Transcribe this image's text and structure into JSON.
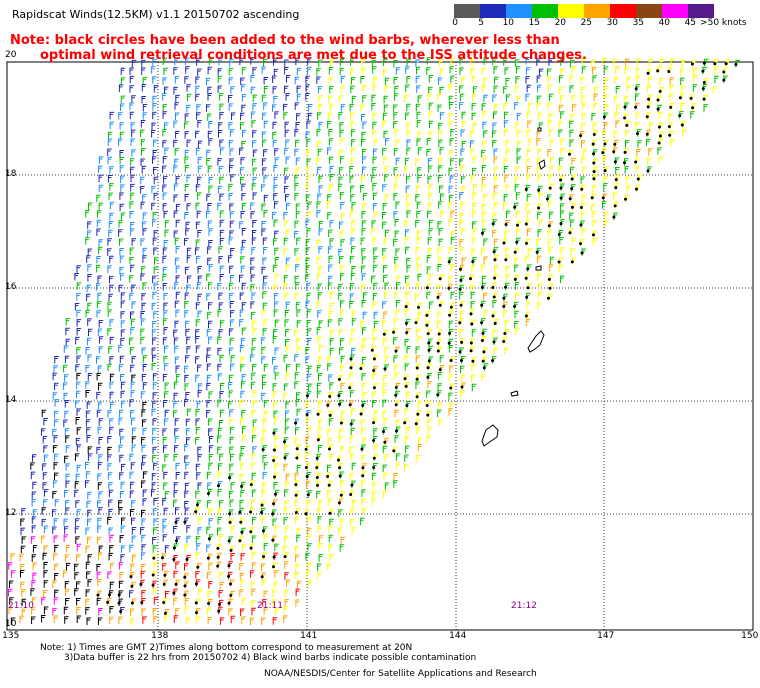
{
  "header": {
    "title": "Rapidscat Winds(12.5KM) v1.1 20150702 ascending",
    "note_line1": "Note: black circles have been added to the wind barbs, wherever less than",
    "note_line2": "optimal wind retrieval conditions are met due to the ISS attitude changes."
  },
  "colorbar": {
    "colors": [
      "#595959",
      "#1e2ab8",
      "#1e90ff",
      "#00c000",
      "#ffff00",
      "#ffa500",
      "#ff0000",
      "#8b4513",
      "#ff00ff",
      "#551a8b"
    ],
    "labels": [
      "0",
      "5",
      "10",
      "15",
      "20",
      "25",
      "30",
      "35",
      "40",
      "45",
      ">50 knots"
    ]
  },
  "map": {
    "lat_labels": [
      "20",
      "18",
      "16",
      "14",
      "12",
      "10"
    ],
    "lon_labels": [
      "135",
      "138",
      "141",
      "144",
      "147",
      "150"
    ],
    "pass_times": [
      "21:10",
      "21:11",
      "21:12"
    ]
  },
  "footer": {
    "note_line1": "Note: 1) Times are GMT 2)Times along bottom correspond to measurement at 20N",
    "note_line2": "3)Data buffer is 22 hrs from 20150702 4) Black wind barbs indicate possible contamination",
    "credit": "NOAA/NESDIS/Center for Satellite Applications and Research"
  }
}
